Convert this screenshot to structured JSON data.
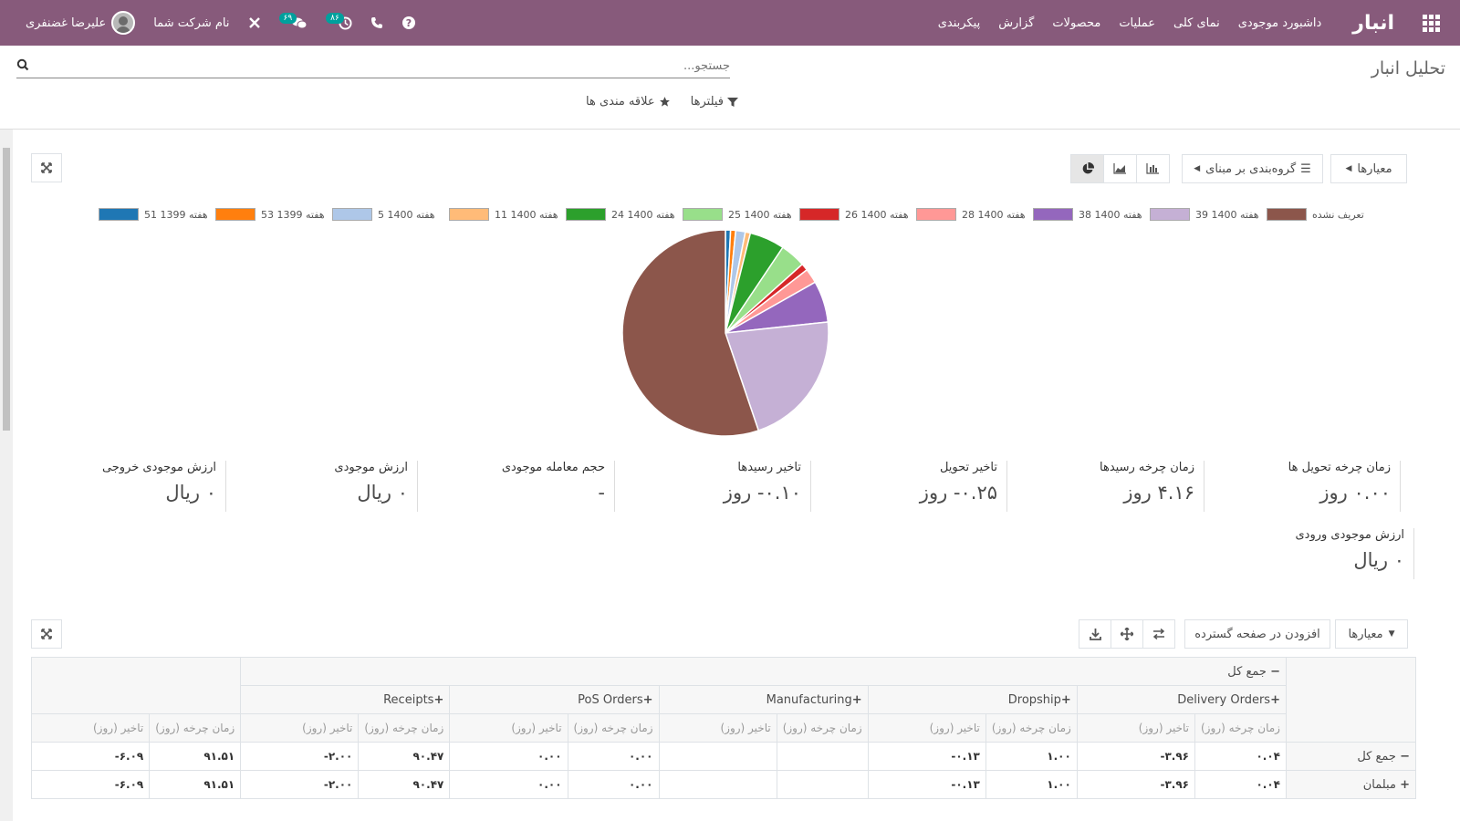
{
  "nav": {
    "brand": "انبار",
    "menu": [
      "داشبورد موجودی",
      "نمای کلی",
      "عملیات",
      "محصولات",
      "گزارش",
      "پیکربندی"
    ],
    "company": "نام شرکت شما",
    "user": "علیرضا غضنفری",
    "badge_messages": "۶۹",
    "badge_activities": "۸۶"
  },
  "control": {
    "title": "تحلیل انبار",
    "search_placeholder": "جستجو...",
    "filters": "فیلترها",
    "favorites": "علاقه مندی ها"
  },
  "graph_toolbar": {
    "measures": "معیارها",
    "group_by": "گروه‌بندی بر مبنای"
  },
  "chart_data": {
    "type": "pie",
    "legend_position": "top",
    "series": [
      {
        "name": "هفته 1399 51",
        "label_prefix": "هفته",
        "label_value": "1399 51",
        "value": 0.8,
        "color": "#1f77b4"
      },
      {
        "name": "هفته 1399 53",
        "label_prefix": "هفته",
        "label_value": "1399 53",
        "value": 0.8,
        "color": "#ff7f0e"
      },
      {
        "name": "هفته 1400 5",
        "label_prefix": "هفته",
        "label_value": "1400 5",
        "value": 1.5,
        "color": "#aec7e8"
      },
      {
        "name": "هفته 1400 11",
        "label_prefix": "هفته",
        "label_value": "1400 11",
        "value": 0.8,
        "color": "#ffbb78"
      },
      {
        "name": "هفته 1400 24",
        "label_prefix": "هفته",
        "label_value": "1400 24",
        "value": 5.5,
        "color": "#2ca02c"
      },
      {
        "name": "هفته 1400 25",
        "label_prefix": "هفته",
        "label_value": "1400 25",
        "value": 4.0,
        "color": "#98df8a"
      },
      {
        "name": "هفته 1400 26",
        "label_prefix": "هفته",
        "label_value": "1400 26",
        "value": 1.1,
        "color": "#d62728"
      },
      {
        "name": "هفته 1400 28",
        "label_prefix": "هفته",
        "label_value": "1400 28",
        "value": 2.3,
        "color": "#ff9896"
      },
      {
        "name": "هفته 1400 38",
        "label_prefix": "هفته",
        "label_value": "1400 38",
        "value": 6.5,
        "color": "#9467bd"
      },
      {
        "name": "هفته 1400 39",
        "label_prefix": "هفته",
        "label_value": "1400 39",
        "value": 21.5,
        "color": "#c5b0d5"
      },
      {
        "name": "تعریف نشده",
        "label_prefix": "تعریف نشده",
        "label_value": "",
        "value": 55.2,
        "color": "#8c564b"
      }
    ]
  },
  "kpis": [
    {
      "label": "زمان چرخه تحویل ها",
      "value": "۰.۰۰ روز"
    },
    {
      "label": "زمان چرخه رسیدها",
      "value": "۴.۱۶ روز"
    },
    {
      "label": "تاخیر تحویل",
      "value": "۰.۲۵- روز"
    },
    {
      "label": "تاخیر رسیدها",
      "value": "۰.۱۰- روز"
    },
    {
      "label": "حجم معامله موجودی",
      "value": "-"
    },
    {
      "label": "ارزش موجودی",
      "value": "۰ ریال"
    },
    {
      "label": "ارزش موجودی خروجی",
      "value": "۰ ریال"
    },
    {
      "label": "ارزش موجودی ورودی",
      "value": "۰ ریال"
    }
  ],
  "pivot_toolbar": {
    "measures": "معیارها",
    "add_spreadsheet": "افزودن در صفحه گسترده"
  },
  "pivot": {
    "total_header": "جمع کل",
    "groups": [
      "Delivery Orders",
      "Dropship",
      "Manufacturing",
      "PoS Orders",
      "Receipts"
    ],
    "measure_cycle": "زمان چرخه (روز)",
    "measure_delay": "تاخیر (روز)",
    "rows": [
      {
        "label": "جمع کل",
        "expand": "−",
        "cells": [
          "۰.۰۴",
          "۳.۹۶-",
          "۱.۰۰",
          "۰.۱۳-",
          "",
          "",
          "۰.۰۰",
          "۰.۰۰",
          "۹۰.۴۷",
          "۲.۰۰-",
          "۹۱.۵۱",
          "۶.۰۹-"
        ]
      },
      {
        "label": "مبلمان",
        "expand": "+",
        "cells": [
          "۰.۰۴",
          "۳.۹۶-",
          "۱.۰۰",
          "۰.۱۳-",
          "",
          "",
          "۰.۰۰",
          "۰.۰۰",
          "۹۰.۴۷",
          "۲.۰۰-",
          "۹۱.۵۱",
          "۶.۰۹-"
        ]
      }
    ]
  }
}
